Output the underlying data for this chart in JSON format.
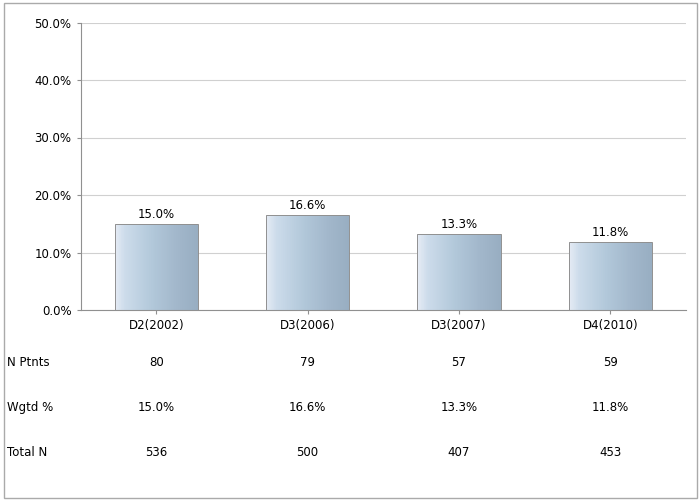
{
  "categories": [
    "D2(2002)",
    "D3(2006)",
    "D3(2007)",
    "D4(2010)"
  ],
  "values": [
    15.0,
    16.6,
    13.3,
    11.8
  ],
  "value_labels": [
    "15.0%",
    "16.6%",
    "13.3%",
    "11.8%"
  ],
  "n_ptnts": [
    "80",
    "79",
    "57",
    "59"
  ],
  "wgtd_pct": [
    "15.0%",
    "16.6%",
    "13.3%",
    "11.8%"
  ],
  "total_n": [
    "536",
    "500",
    "407",
    "453"
  ],
  "ylim": [
    0,
    50
  ],
  "yticks": [
    0,
    10,
    20,
    30,
    40,
    50
  ],
  "ytick_labels": [
    "0.0%",
    "10.0%",
    "20.0%",
    "30.0%",
    "40.0%",
    "50.0%"
  ],
  "grid_color": "#d0d0d0",
  "row_labels": [
    "N Ptnts",
    "Wgtd %",
    "Total N"
  ],
  "bar_width": 0.55
}
